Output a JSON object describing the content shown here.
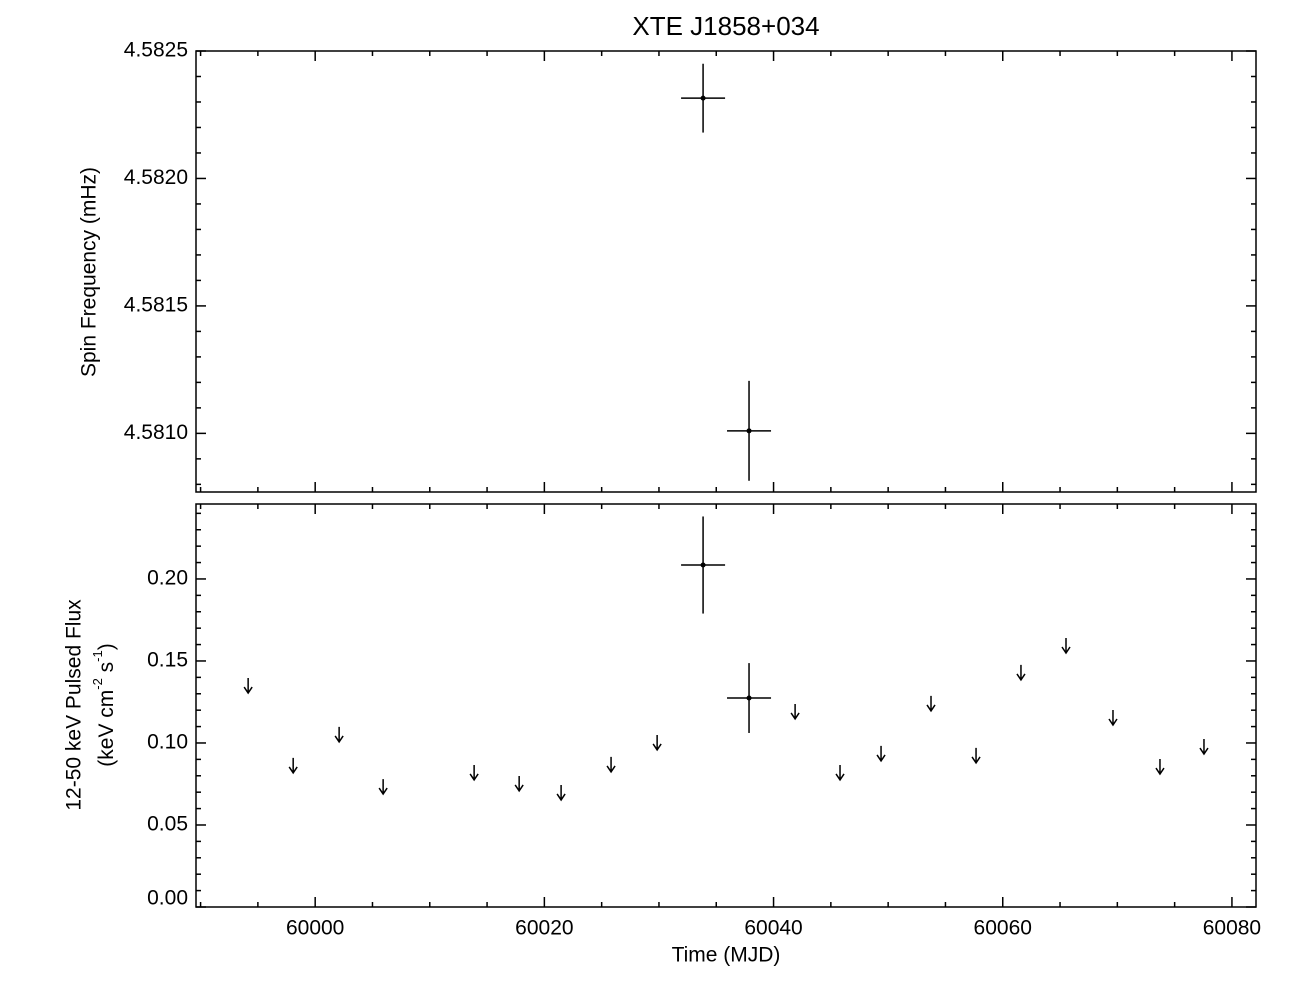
{
  "chart_data": [
    {
      "type": "errorbar",
      "title": "XTE J1858+034",
      "y_label": "Spin Frequency (mHz)",
      "x": [
        60033.85,
        60037.86
      ],
      "values": [
        4.582315,
        4.58101
      ],
      "xerr": [
        1.92,
        1.92
      ],
      "yerr": [
        0.000135,
        0.000196
      ],
      "xlim": [
        59989.6,
        60082.1
      ],
      "xticks": [
        60000,
        60020,
        60040,
        60060,
        60080
      ],
      "x_minor": 4,
      "ylim": [
        4.58077,
        4.5825
      ],
      "yticks": [
        {
          "value": 4.581,
          "label": "4.5810"
        },
        4.5815,
        {
          "value": 4.582,
          "label": "4.5820"
        },
        4.5825
      ],
      "y_minor": 5,
      "color": "#000000"
    },
    {
      "type": "errorbar",
      "x_label": "Time (MJD)",
      "y_label": "12-50 keV Pulsed Flux",
      "y_label_units": [
        "(keV cm",
        "-2",
        " s",
        "-1",
        ")"
      ],
      "x": [
        60033.85,
        60037.86
      ],
      "values": [
        0.2085,
        0.1274
      ],
      "xerr": [
        1.92,
        1.92
      ],
      "yerr": [
        0.0296,
        0.0213
      ],
      "upper_limits": {
        "x": [
          59994.15,
          59998.08,
          60002.09,
          60005.93,
          60013.87,
          60017.8,
          60021.46,
          60025.82,
          60029.84,
          60041.88,
          60045.8,
          60049.38,
          60053.74,
          60057.67,
          60061.59,
          60065.52,
          60069.62,
          60073.72,
          60077.56
        ],
        "values": [
          0.1396,
          0.0909,
          0.1098,
          0.078,
          0.0866,
          0.0799,
          0.0744,
          0.0915,
          0.1049,
          0.1238,
          0.0866,
          0.0982,
          0.1287,
          0.097,
          0.1476,
          0.164,
          0.1201,
          0.0902,
          0.1024
        ]
      },
      "xlim": [
        59989.6,
        60082.1
      ],
      "xticks": [
        60000,
        60020,
        60040,
        60060,
        60080
      ],
      "x_minor": 4,
      "ylim": [
        0,
        0.2457
      ],
      "yticks": [
        {
          "value": 0,
          "label": "0.00"
        },
        0.05,
        {
          "value": 0.1,
          "label": "0.10"
        },
        0.15,
        {
          "value": 0.2,
          "label": "0.20"
        }
      ],
      "y_minor": 5,
      "color": "#000000"
    }
  ]
}
